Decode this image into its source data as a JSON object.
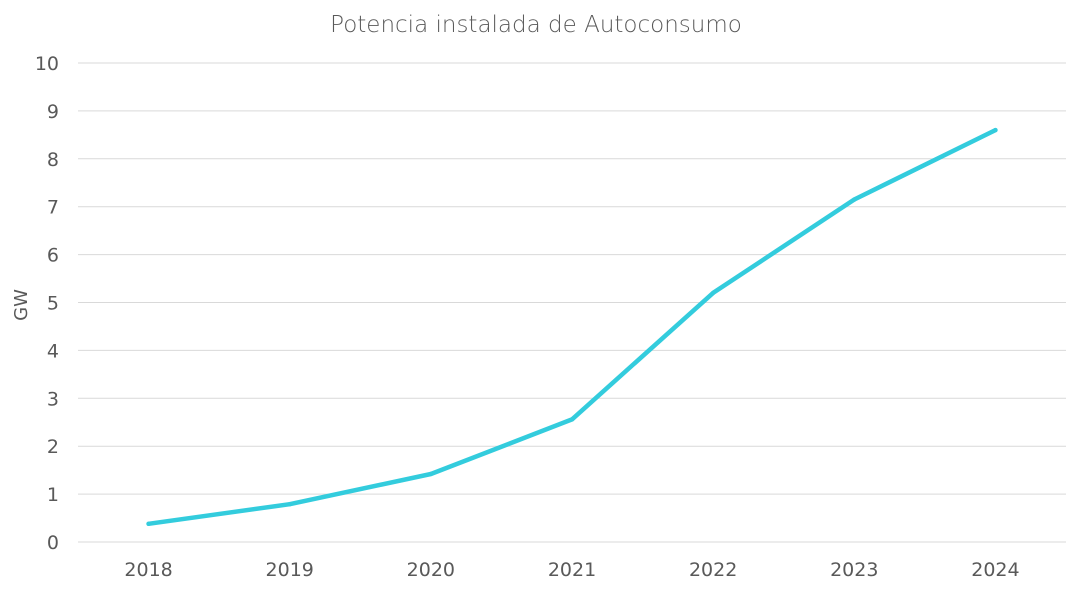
{
  "chart_data": {
    "type": "line",
    "title": "Potencia instalada de Autoconsumo",
    "xlabel": "",
    "ylabel": "GW",
    "categories": [
      "2018",
      "2019",
      "2020",
      "2021",
      "2022",
      "2023",
      "2024"
    ],
    "series": [
      {
        "values": [
          0.38,
          0.79,
          1.42,
          2.56,
          5.2,
          7.15,
          8.6
        ],
        "color": "#33CCDD"
      }
    ],
    "ylim": [
      0,
      10
    ],
    "yticks": [
      0,
      1,
      2,
      3,
      4,
      5,
      6,
      7,
      8,
      9,
      10
    ],
    "grid": true,
    "legend": "none"
  }
}
